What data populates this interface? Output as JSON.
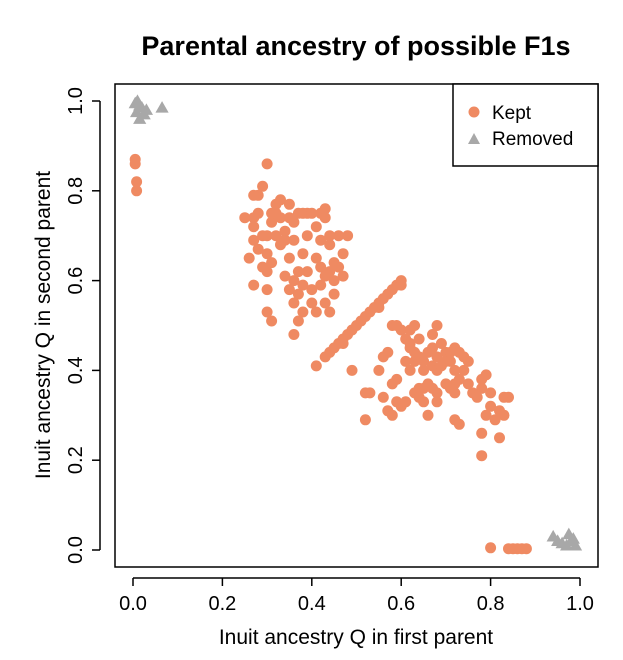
{
  "chart_data": {
    "type": "scatter",
    "title": "Parental ancestry of possible F1s",
    "xlabel": "Inuit ancestry Q in first parent",
    "ylabel": "Inuit ancestry Q in second parent",
    "xlim": [
      0,
      1
    ],
    "ylim": [
      0,
      1
    ],
    "xticks": [
      "0.0",
      "0.2",
      "0.4",
      "0.6",
      "0.8",
      "1.0"
    ],
    "yticks": [
      "0.0",
      "0.2",
      "0.4",
      "0.6",
      "0.8",
      "1.0"
    ],
    "grid": false,
    "legend_position": "top-right",
    "colors": {
      "kept": "#ef8a62",
      "removed": "#a8a8a8"
    },
    "series": [
      {
        "name": "Kept",
        "marker": "circle",
        "points": [
          [
            0.005,
            0.87
          ],
          [
            0.005,
            0.86
          ],
          [
            0.008,
            0.82
          ],
          [
            0.008,
            0.8
          ],
          [
            0.3,
            0.86
          ],
          [
            0.29,
            0.81
          ],
          [
            0.28,
            0.79
          ],
          [
            0.27,
            0.79
          ],
          [
            0.25,
            0.74
          ],
          [
            0.27,
            0.74
          ],
          [
            0.28,
            0.75
          ],
          [
            0.27,
            0.72
          ],
          [
            0.27,
            0.69
          ],
          [
            0.28,
            0.67
          ],
          [
            0.29,
            0.7
          ],
          [
            0.3,
            0.7
          ],
          [
            0.31,
            0.73
          ],
          [
            0.31,
            0.75
          ],
          [
            0.32,
            0.75
          ],
          [
            0.32,
            0.77
          ],
          [
            0.33,
            0.78
          ],
          [
            0.33,
            0.74
          ],
          [
            0.34,
            0.71
          ],
          [
            0.34,
            0.69
          ],
          [
            0.33,
            0.68
          ],
          [
            0.32,
            0.7
          ],
          [
            0.35,
            0.77
          ],
          [
            0.35,
            0.74
          ],
          [
            0.36,
            0.73
          ],
          [
            0.36,
            0.69
          ],
          [
            0.35,
            0.65
          ],
          [
            0.34,
            0.61
          ],
          [
            0.35,
            0.58
          ],
          [
            0.36,
            0.55
          ],
          [
            0.36,
            0.6
          ],
          [
            0.37,
            0.62
          ],
          [
            0.37,
            0.57
          ],
          [
            0.38,
            0.53
          ],
          [
            0.38,
            0.59
          ],
          [
            0.39,
            0.62
          ],
          [
            0.38,
            0.66
          ],
          [
            0.39,
            0.7
          ],
          [
            0.37,
            0.75
          ],
          [
            0.38,
            0.75
          ],
          [
            0.39,
            0.75
          ],
          [
            0.4,
            0.75
          ],
          [
            0.41,
            0.72
          ],
          [
            0.42,
            0.69
          ],
          [
            0.42,
            0.75
          ],
          [
            0.43,
            0.76
          ],
          [
            0.43,
            0.74
          ],
          [
            0.44,
            0.7
          ],
          [
            0.44,
            0.68
          ],
          [
            0.42,
            0.63
          ],
          [
            0.41,
            0.65
          ],
          [
            0.43,
            0.61
          ],
          [
            0.44,
            0.62
          ],
          [
            0.45,
            0.64
          ],
          [
            0.45,
            0.6
          ],
          [
            0.46,
            0.63
          ],
          [
            0.46,
            0.7
          ],
          [
            0.48,
            0.7
          ],
          [
            0.47,
            0.66
          ],
          [
            0.47,
            0.61
          ],
          [
            0.45,
            0.57
          ],
          [
            0.44,
            0.53
          ],
          [
            0.43,
            0.55
          ],
          [
            0.42,
            0.59
          ],
          [
            0.4,
            0.58
          ],
          [
            0.4,
            0.55
          ],
          [
            0.41,
            0.53
          ],
          [
            0.37,
            0.51
          ],
          [
            0.36,
            0.48
          ],
          [
            0.3,
            0.58
          ],
          [
            0.31,
            0.51
          ],
          [
            0.3,
            0.62
          ],
          [
            0.29,
            0.63
          ],
          [
            0.31,
            0.64
          ],
          [
            0.3,
            0.66
          ],
          [
            0.3,
            0.53
          ],
          [
            0.27,
            0.59
          ],
          [
            0.26,
            0.65
          ],
          [
            0.43,
            0.43
          ],
          [
            0.44,
            0.44
          ],
          [
            0.45,
            0.45
          ],
          [
            0.46,
            0.46
          ],
          [
            0.47,
            0.47
          ],
          [
            0.48,
            0.48
          ],
          [
            0.49,
            0.49
          ],
          [
            0.5,
            0.5
          ],
          [
            0.51,
            0.51
          ],
          [
            0.52,
            0.52
          ],
          [
            0.53,
            0.53
          ],
          [
            0.54,
            0.54
          ],
          [
            0.55,
            0.55
          ],
          [
            0.56,
            0.56
          ],
          [
            0.57,
            0.57
          ],
          [
            0.58,
            0.58
          ],
          [
            0.59,
            0.59
          ],
          [
            0.6,
            0.6
          ],
          [
            0.6,
            0.59
          ],
          [
            0.41,
            0.41
          ],
          [
            0.47,
            0.46
          ],
          [
            0.55,
            0.54
          ],
          [
            0.49,
            0.4
          ],
          [
            0.52,
            0.29
          ],
          [
            0.52,
            0.35
          ],
          [
            0.53,
            0.35
          ],
          [
            0.55,
            0.4
          ],
          [
            0.56,
            0.34
          ],
          [
            0.56,
            0.43
          ],
          [
            0.57,
            0.44
          ],
          [
            0.57,
            0.31
          ],
          [
            0.58,
            0.3
          ],
          [
            0.58,
            0.37
          ],
          [
            0.59,
            0.33
          ],
          [
            0.6,
            0.32
          ],
          [
            0.61,
            0.33
          ],
          [
            0.59,
            0.38
          ],
          [
            0.58,
            0.5
          ],
          [
            0.59,
            0.5
          ],
          [
            0.6,
            0.49
          ],
          [
            0.61,
            0.47
          ],
          [
            0.62,
            0.49
          ],
          [
            0.62,
            0.46
          ],
          [
            0.63,
            0.44
          ],
          [
            0.63,
            0.5
          ],
          [
            0.64,
            0.47
          ],
          [
            0.64,
            0.43
          ],
          [
            0.65,
            0.42
          ],
          [
            0.65,
            0.4
          ],
          [
            0.64,
            0.36
          ],
          [
            0.63,
            0.35
          ],
          [
            0.64,
            0.34
          ],
          [
            0.65,
            0.36
          ],
          [
            0.66,
            0.37
          ],
          [
            0.66,
            0.44
          ],
          [
            0.67,
            0.45
          ],
          [
            0.67,
            0.41
          ],
          [
            0.67,
            0.48
          ],
          [
            0.68,
            0.5
          ],
          [
            0.68,
            0.43
          ],
          [
            0.68,
            0.4
          ],
          [
            0.67,
            0.36
          ],
          [
            0.68,
            0.35
          ],
          [
            0.69,
            0.41
          ],
          [
            0.69,
            0.46
          ],
          [
            0.7,
            0.44
          ],
          [
            0.7,
            0.42
          ],
          [
            0.71,
            0.44
          ],
          [
            0.71,
            0.42
          ],
          [
            0.72,
            0.45
          ],
          [
            0.72,
            0.4
          ],
          [
            0.72,
            0.37
          ],
          [
            0.73,
            0.38
          ],
          [
            0.73,
            0.44
          ],
          [
            0.74,
            0.43
          ],
          [
            0.74,
            0.4
          ],
          [
            0.75,
            0.42
          ],
          [
            0.75,
            0.37
          ],
          [
            0.72,
            0.35
          ],
          [
            0.72,
            0.29
          ],
          [
            0.73,
            0.28
          ],
          [
            0.71,
            0.36
          ],
          [
            0.7,
            0.37
          ],
          [
            0.68,
            0.33
          ],
          [
            0.66,
            0.3
          ],
          [
            0.65,
            0.33
          ],
          [
            0.62,
            0.45
          ],
          [
            0.63,
            0.42
          ],
          [
            0.61,
            0.42
          ],
          [
            0.62,
            0.4
          ],
          [
            0.78,
            0.38
          ],
          [
            0.78,
            0.36
          ],
          [
            0.79,
            0.39
          ],
          [
            0.79,
            0.3
          ],
          [
            0.78,
            0.26
          ],
          [
            0.78,
            0.21
          ],
          [
            0.8,
            0.35
          ],
          [
            0.8,
            0.32
          ],
          [
            0.81,
            0.29
          ],
          [
            0.82,
            0.31
          ],
          [
            0.82,
            0.25
          ],
          [
            0.83,
            0.34
          ],
          [
            0.83,
            0.3
          ],
          [
            0.84,
            0.34
          ],
          [
            0.76,
            0.35
          ],
          [
            0.77,
            0.34
          ],
          [
            0.8,
            0.005
          ],
          [
            0.84,
            0.003
          ],
          [
            0.85,
            0.003
          ],
          [
            0.86,
            0.003
          ],
          [
            0.87,
            0.003
          ],
          [
            0.88,
            0.003
          ]
        ]
      },
      {
        "name": "Removed",
        "marker": "triangle",
        "points": [
          [
            0.005,
            0.995
          ],
          [
            0.01,
            1.0
          ],
          [
            0.015,
            0.99
          ],
          [
            0.02,
            0.985
          ],
          [
            0.008,
            0.975
          ],
          [
            0.015,
            0.96
          ],
          [
            0.025,
            0.97
          ],
          [
            0.03,
            0.98
          ],
          [
            0.065,
            0.985
          ],
          [
            0.94,
            0.03
          ],
          [
            0.95,
            0.02
          ],
          [
            0.96,
            0.015
          ],
          [
            0.97,
            0.01
          ],
          [
            0.98,
            0.02
          ],
          [
            0.985,
            0.025
          ],
          [
            0.99,
            0.01
          ],
          [
            0.975,
            0.035
          ]
        ]
      }
    ]
  }
}
